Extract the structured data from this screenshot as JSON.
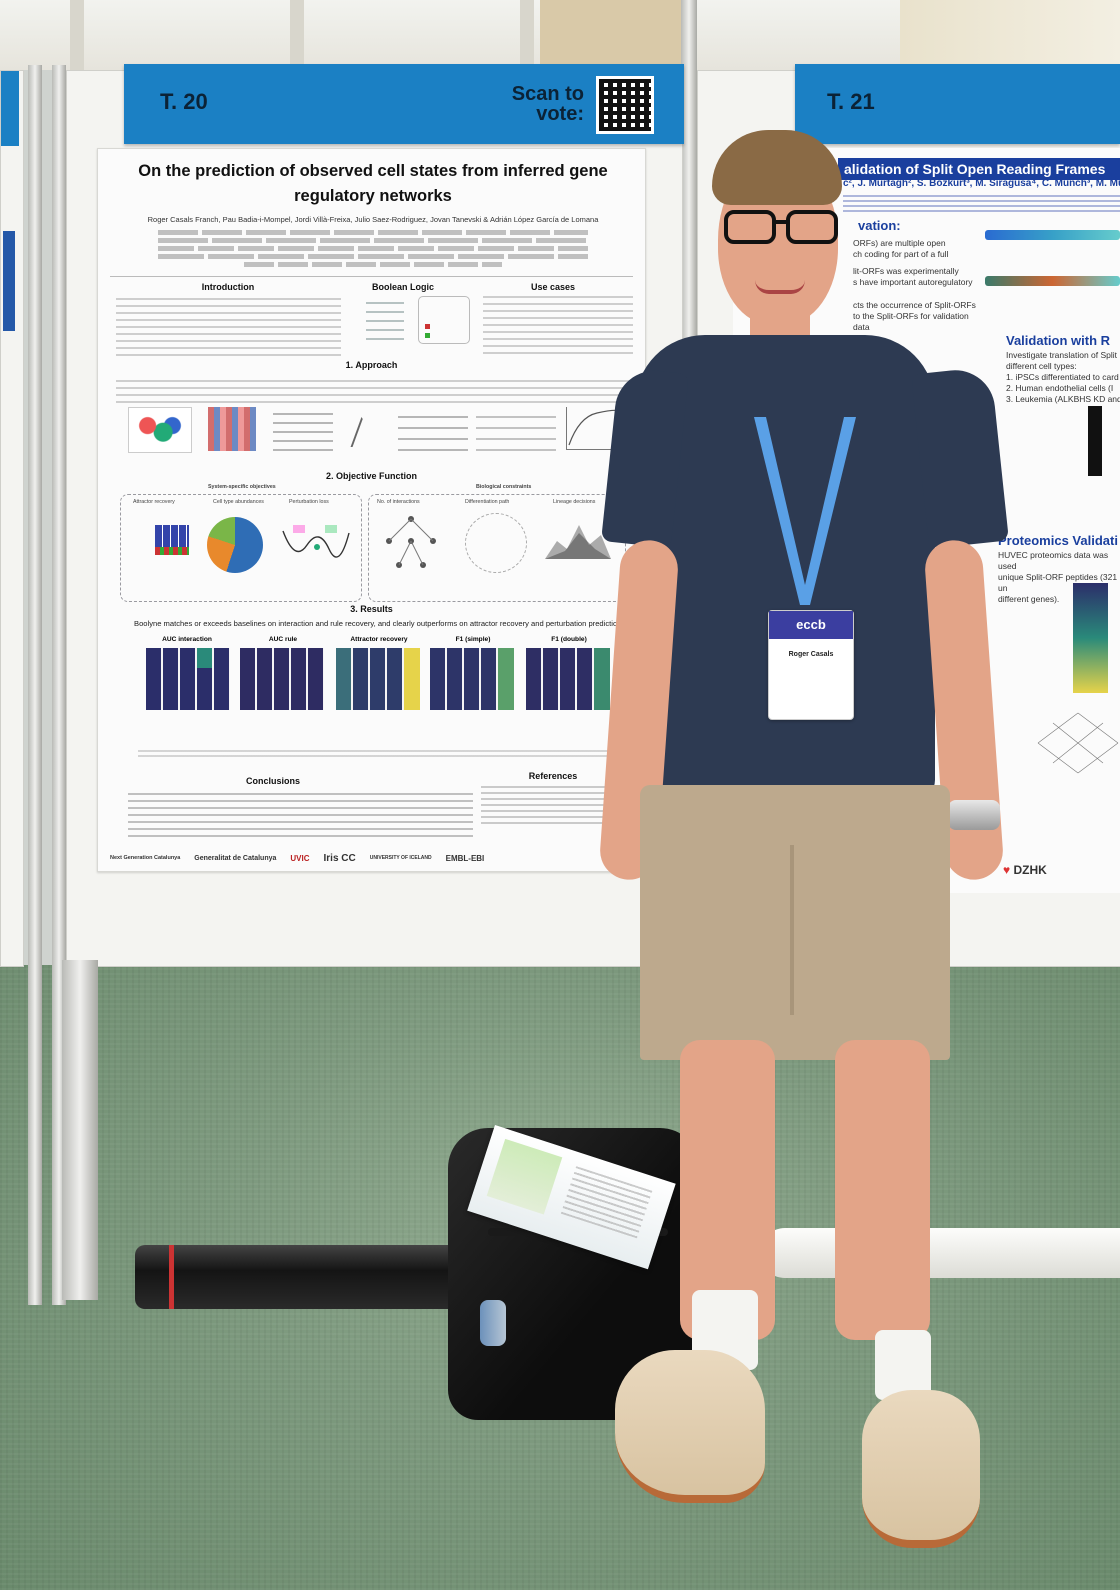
{
  "left_board": {
    "number": "T. 20",
    "scan_to_vote": "Scan to\nvote:"
  },
  "right_board": {
    "number": "T. 21"
  },
  "poster": {
    "title": "On the prediction of observed cell states from inferred gene regulatory networks",
    "authors": "Roger Casals Franch, Pau Badia-i-Mompel, Jordi Villà-Freixa, Julio Saez-Rodriguez, Jovan Tanevski & Adrián López García de Lomana",
    "sections": {
      "introduction": "Introduction",
      "boolean_logic": "Boolean Logic",
      "use_cases": "Use cases",
      "approach": "1. Approach",
      "objective": "2. Objective Function",
      "results": "3. Results",
      "conclusions": "Conclusions",
      "references": "References"
    },
    "objective_labels": {
      "system_specific": "System-specific objectives",
      "biological": "Biological constraints",
      "attractor_recovery": "Attractor recovery",
      "cell_type_abundances": "Cell type abundances",
      "perturbation_loss": "Perturbation loss",
      "no_interactions": "No. of interactions",
      "differentiation_path": "Differentiation path",
      "lineage_decisions": "Lineage decisions"
    },
    "results_summary": "Boolyne matches or exceeds baselines on interaction and rule recovery, and clearly outperforms on attractor recovery and perturbation predictio",
    "results_panels": [
      "AUC interaction",
      "AUC rule",
      "Attractor recovery",
      "F1 (simple)",
      "F1 (double)"
    ],
    "logos": [
      "Next Generation Catalunya",
      "Generalitat de Catalunya",
      "UVIC",
      "Iris CC",
      "UNIVERSITY OF ICELAND",
      "EMBL-EBI"
    ]
  },
  "right_poster": {
    "title": "alidation of Split Open Reading Frames",
    "authors": "c², J. Murtagh², S. Bozkurt³, M. Siragusa⁴, C. Münch³, M. Mülle",
    "motivation_head": "vation:",
    "motivation_lines": [
      "ORFs) are multiple open",
      "ch coding for part of a full",
      "lit-ORFs was experimentally",
      "s have important autoregulatory",
      "cts the occurrence of Split-ORFs",
      "to the Split-ORFs for validation",
      "data"
    ],
    "validation_head": "Validation with R",
    "validation_lines": [
      "Investigate translation of Split",
      "different cell types:",
      "1.  iPSCs differentiated to card",
      "2.  Human endothelial cells (I",
      "3.  Leukemia (ALKBHS KD  and"
    ],
    "proteomics_head": "Proteomics Validati",
    "proteomics_lines": [
      "HUVEC proteomics data was used",
      "unique Split-ORF peptides (321 un",
      "different genes)."
    ],
    "sponsor": "DZHK"
  },
  "badge": {
    "logo": "eccb",
    "name": "Roger Casals"
  },
  "colors": {
    "board_header": "#1b80c4",
    "poster_title_blue": "#1a3f9e",
    "shirt": "#2d3a52",
    "shorts": "#bda98d",
    "lanyard": "#5aa0e6"
  }
}
